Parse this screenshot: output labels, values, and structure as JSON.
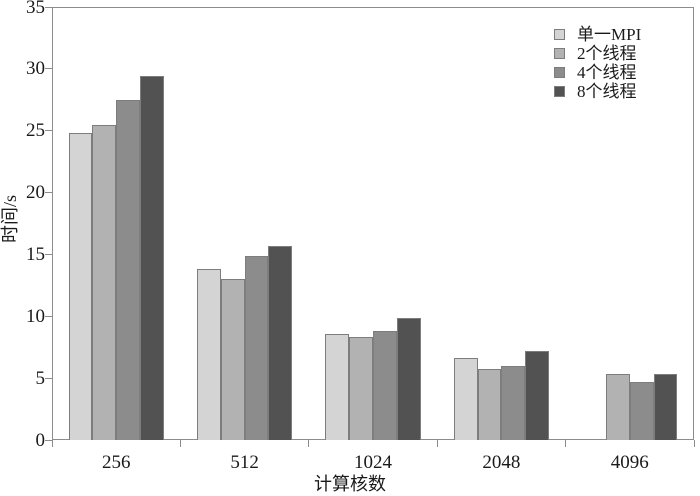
{
  "figure": {
    "background": "#ffffff",
    "plot_border_color": "#8c8c8c",
    "bar_border_color": "#7d7d7d"
  },
  "chart_data": {
    "type": "bar",
    "title": "",
    "xlabel": "计算核数",
    "ylabel": "时间/s",
    "ylim": [
      0,
      35
    ],
    "yticks": [
      0,
      5,
      10,
      15,
      20,
      25,
      30,
      35
    ],
    "categories": [
      "256",
      "512",
      "1024",
      "2048",
      "4096"
    ],
    "series": [
      {
        "name": "单一MPI",
        "color": "#d4d4d4",
        "values": [
          24.8,
          13.8,
          8.6,
          6.6,
          null
        ]
      },
      {
        "name": "2个线程",
        "color": "#b2b2b2",
        "values": [
          25.5,
          13.0,
          8.3,
          5.7,
          5.3
        ]
      },
      {
        "name": "4个线程",
        "color": "#8c8c8c",
        "values": [
          27.5,
          14.9,
          8.8,
          6.0,
          4.7
        ]
      },
      {
        "name": "8个线程",
        "color": "#525252",
        "values": [
          29.4,
          15.7,
          9.9,
          7.2,
          5.3
        ]
      }
    ],
    "legend_position": "top-right",
    "grid": false
  }
}
